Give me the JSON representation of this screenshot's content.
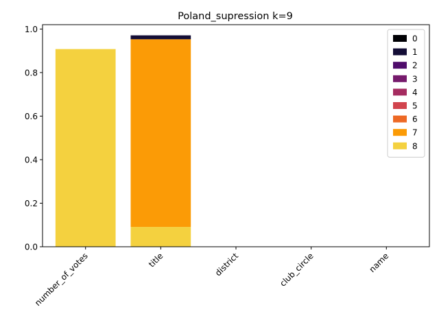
{
  "chart_data": {
    "type": "bar",
    "stacked": true,
    "title": "Poland_supression k=9",
    "xlabel": "",
    "ylabel": "",
    "categories": [
      "number_of_votes",
      "title",
      "district",
      "club_circle",
      "name"
    ],
    "ylim": [
      0,
      1.02
    ],
    "yticks": [
      0.0,
      0.2,
      0.4,
      0.6,
      0.8,
      1.0
    ],
    "ytick_labels": [
      "0.0",
      "0.2",
      "0.4",
      "0.6",
      "0.8",
      "1.0"
    ],
    "xtick_rotation": 45,
    "grid": false,
    "legend_position": "top-right",
    "series": [
      {
        "name": "0",
        "color": "#000004",
        "values": [
          0,
          0,
          0,
          0,
          0
        ]
      },
      {
        "name": "1",
        "color": "#140e36",
        "values": [
          0,
          0.018,
          0,
          0,
          0
        ]
      },
      {
        "name": "2",
        "color": "#4f0c6b",
        "values": [
          0,
          0,
          0,
          0,
          0
        ]
      },
      {
        "name": "3",
        "color": "#761a6c",
        "values": [
          0,
          0,
          0,
          0,
          0
        ]
      },
      {
        "name": "4",
        "color": "#a52c60",
        "values": [
          0,
          0,
          0,
          0,
          0
        ]
      },
      {
        "name": "5",
        "color": "#d1444d",
        "values": [
          0,
          0,
          0,
          0,
          0
        ]
      },
      {
        "name": "6",
        "color": "#ed6925",
        "values": [
          0,
          0,
          0,
          0,
          0
        ]
      },
      {
        "name": "7",
        "color": "#fb9b06",
        "values": [
          0,
          0.862,
          0,
          0,
          0
        ]
      },
      {
        "name": "8",
        "color": "#f4d13f",
        "values": [
          0.908,
          0.091,
          0,
          0,
          0
        ]
      }
    ]
  }
}
